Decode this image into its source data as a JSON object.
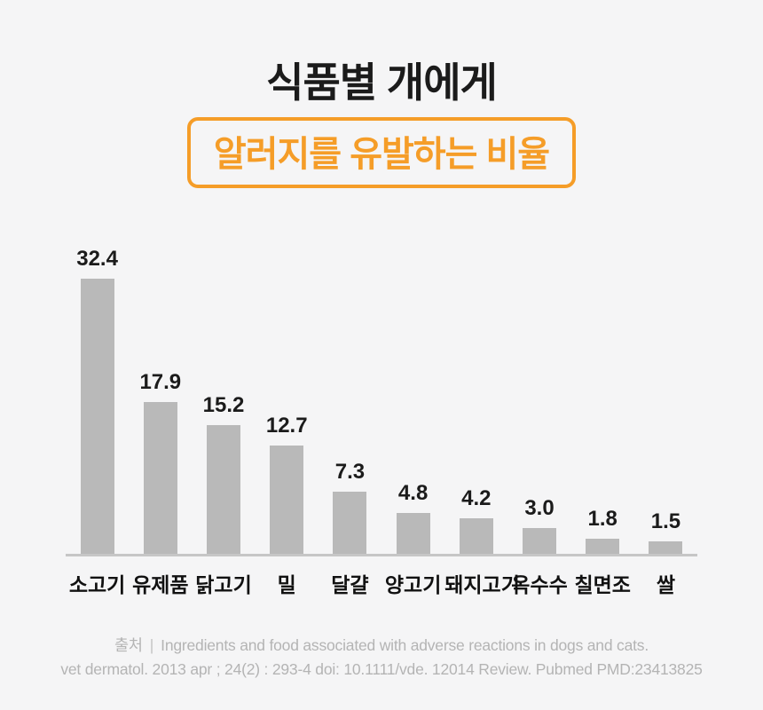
{
  "header": {
    "title": "식품별 개에게",
    "subtitle": "알러지를 유발하는 비율"
  },
  "chart_data": {
    "type": "bar",
    "categories": [
      "소고기",
      "유제품",
      "닭고기",
      "밀",
      "달걀",
      "양고기",
      "돼지고기",
      "옥수수",
      "칠면조",
      "쌀"
    ],
    "values": [
      32.4,
      17.9,
      15.2,
      12.7,
      7.3,
      4.8,
      4.2,
      3.0,
      1.8,
      1.5
    ],
    "value_labels": [
      "32.4",
      "17.9",
      "15.2",
      "12.7",
      "7.3",
      "4.8",
      "4.2",
      "3.0",
      "1.8",
      "1.5"
    ],
    "title": "식품별 개에게 알러지를 유발하는 비율",
    "xlabel": "",
    "ylabel": "",
    "ylim": [
      0,
      32.4
    ],
    "grid": false,
    "legend": false,
    "bar_color": "#b9b9b9",
    "axis_color": "#c6c6c6"
  },
  "source": {
    "label": "출처",
    "separator": "|",
    "line1": "Ingredients and food associated with adverse reactions in dogs and cats.",
    "line2": "vet dermatol. 2013 apr ; 24(2) : 293-4 doi: 10.1111/vde. 12014 Review. Pubmed PMD:23413825"
  },
  "colors": {
    "accent_orange": "#f59d28",
    "background": "#f5f5f6",
    "bar": "#b9b9b9",
    "axis": "#c6c6c6",
    "title_text": "#1b1b1b",
    "source_text": "#b4b4b4"
  }
}
